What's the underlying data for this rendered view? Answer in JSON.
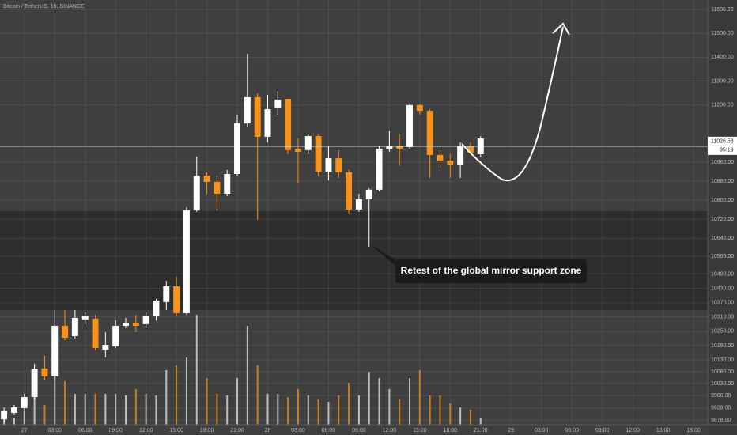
{
  "chart_data": {
    "type": "candlestick",
    "title": "Bitcoin / TetherUS, 1h, BINANCE",
    "annotation": "Retest of the global mirror support zone",
    "x": [
      0,
      1,
      2,
      3,
      4,
      5,
      6,
      7,
      8,
      9,
      10,
      11,
      12,
      13,
      14,
      15,
      16,
      17,
      18,
      19,
      20,
      21,
      22,
      23,
      24,
      25,
      26,
      27,
      28,
      29,
      30,
      31,
      32,
      33,
      34,
      35,
      36,
      37,
      38,
      39,
      40,
      41,
      42,
      43,
      44,
      45,
      46,
      47
    ],
    "open": [
      9881,
      9908,
      9928,
      9974,
      10094,
      10061,
      10273,
      10230,
      10300,
      10303,
      10173,
      10187,
      10273,
      10286,
      10280,
      10313,
      10373,
      10439,
      10326,
      10757,
      10903,
      10877,
      10827,
      10910,
      11122,
      11232,
      11066,
      11189,
      11225,
      11016,
      11010,
      11069,
      10920,
      10976,
      10917,
      10761,
      10804,
      10844,
      11016,
      11029,
      11023,
      11199,
      11175,
      10990,
      10966,
      10950,
      11026,
      10993
    ],
    "high": [
      9931,
      9941,
      9988,
      10114,
      10147,
      10339,
      10339,
      10339,
      10329,
      10319,
      10246,
      10296,
      10306,
      10319,
      10329,
      10386,
      10462,
      10479,
      10771,
      10983,
      10917,
      10903,
      10927,
      11159,
      11414,
      11248,
      11242,
      11258,
      11225,
      11059,
      11076,
      11076,
      11026,
      11010,
      10927,
      10827,
      10850,
      11026,
      11092,
      11076,
      11202,
      11202,
      11182,
      11010,
      10993,
      11043,
      11043,
      11069
    ],
    "low": [
      9871,
      9898,
      9915,
      9964,
      10047,
      10047,
      10213,
      10220,
      10280,
      10170,
      10140,
      10180,
      10263,
      10246,
      10263,
      10296,
      10339,
      10313,
      10319,
      10751,
      10827,
      10757,
      10817,
      10903,
      11109,
      10718,
      11043,
      11159,
      10993,
      10870,
      10993,
      10903,
      10883,
      10893,
      10744,
      10751,
      10605,
      10837,
      11003,
      10943,
      11016,
      11159,
      10893,
      10937,
      10893,
      10893,
      10993,
      10983
    ],
    "close": [
      9915,
      9931,
      9974,
      10091,
      10061,
      10273,
      10223,
      10306,
      10313,
      10180,
      10193,
      10273,
      10286,
      10273,
      10313,
      10379,
      10439,
      10326,
      10757,
      10903,
      10877,
      10827,
      10910,
      11122,
      11232,
      11066,
      11182,
      11222,
      11010,
      11003,
      11069,
      10920,
      10976,
      10917,
      10761,
      10804,
      10844,
      11016,
      11029,
      11016,
      11199,
      11175,
      10990,
      10966,
      10950,
      11026,
      11000,
      11059
    ],
    "volume": [
      7,
      9,
      17,
      71,
      25,
      67,
      55,
      39,
      39,
      39,
      39,
      39,
      37,
      45,
      39,
      37,
      69,
      75,
      85,
      139,
      59,
      39,
      37,
      59,
      125,
      75,
      39,
      39,
      35,
      45,
      37,
      32,
      29,
      37,
      53,
      37,
      67,
      59,
      45,
      32,
      59,
      69,
      37,
      37,
      27,
      22,
      19,
      9
    ],
    "volume_ylim": [
      0,
      537
    ],
    "up_color": "#ffffff",
    "down_color": "#f7931a",
    "volume_up_color": "#bdbdbd",
    "volume_down_color": "#c9801f",
    "support_zone": {
      "low": 10339,
      "high": 10754
    },
    "last_price": 11026.53,
    "countdown": "35:19",
    "xlim": [
      -0.4,
      69.4
    ],
    "xticks": [
      {
        "value": 2,
        "label": "27"
      },
      {
        "value": 5,
        "label": "03:00"
      },
      {
        "value": 8,
        "label": "06:00"
      },
      {
        "value": 11,
        "label": "09:00"
      },
      {
        "value": 14,
        "label": "12:00"
      },
      {
        "value": 17,
        "label": "15:00"
      },
      {
        "value": 20,
        "label": "18:00"
      },
      {
        "value": 23,
        "label": "21:00"
      },
      {
        "value": 26,
        "label": "28"
      },
      {
        "value": 29,
        "label": "03:00"
      },
      {
        "value": 32,
        "label": "06:00"
      },
      {
        "value": 35,
        "label": "09:00"
      },
      {
        "value": 38,
        "label": "12:00"
      },
      {
        "value": 41,
        "label": "15:00"
      },
      {
        "value": 44,
        "label": "18:00"
      },
      {
        "value": 47,
        "label": "21:00"
      },
      {
        "value": 50,
        "label": "29"
      },
      {
        "value": 53,
        "label": "03:00"
      },
      {
        "value": 56,
        "label": "06:00"
      },
      {
        "value": 59,
        "label": "09:00"
      },
      {
        "value": 62,
        "label": "12:00"
      },
      {
        "value": 65,
        "label": "15:00"
      },
      {
        "value": 68,
        "label": "18:00"
      }
    ],
    "ylim": [
      9858,
      11640
    ],
    "yticks": [
      {
        "value": 11600,
        "label": "11600.00"
      },
      {
        "value": 11500,
        "label": "11500.00"
      },
      {
        "value": 11400,
        "label": "11400.00"
      },
      {
        "value": 11300,
        "label": "11300.00"
      },
      {
        "value": 11200,
        "label": "11200.00"
      },
      {
        "value": 10960,
        "label": "10960.00"
      },
      {
        "value": 10880,
        "label": "10880.00"
      },
      {
        "value": 10800,
        "label": "10800.00"
      },
      {
        "value": 10720,
        "label": "10720.00"
      },
      {
        "value": 10640,
        "label": "10640.00"
      },
      {
        "value": 10565,
        "label": "10565.00"
      },
      {
        "value": 10490,
        "label": "10490.00"
      },
      {
        "value": 10430,
        "label": "10430.00"
      },
      {
        "value": 10370,
        "label": "10370.00"
      },
      {
        "value": 10310,
        "label": "10310.00"
      },
      {
        "value": 10250,
        "label": "10250.00"
      },
      {
        "value": 10190,
        "label": "10190.00"
      },
      {
        "value": 10130,
        "label": "10130.00"
      },
      {
        "value": 10080,
        "label": "10080.00"
      },
      {
        "value": 10030,
        "label": "10030.00"
      },
      {
        "value": 9980,
        "label": "9980.00"
      },
      {
        "value": 9928,
        "label": "9928.00"
      },
      {
        "value": 9878,
        "label": "9878.00"
      }
    ],
    "grid": true
  }
}
